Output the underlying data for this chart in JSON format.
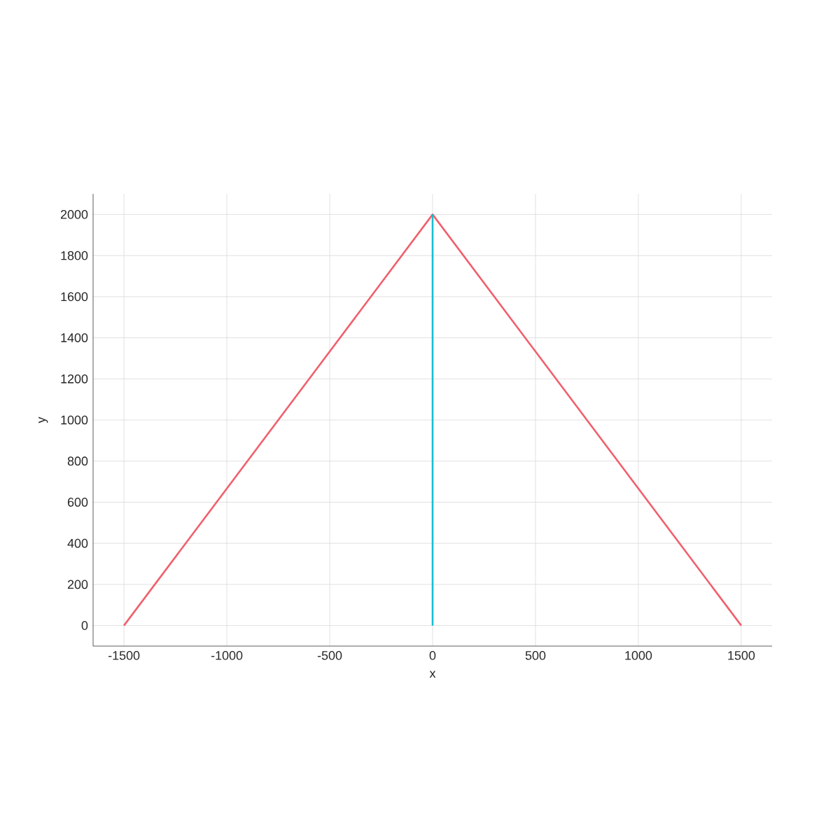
{
  "chart_data": {
    "type": "line",
    "xlabel": "x",
    "ylabel": "y",
    "series": [
      {
        "x": [
          -1500,
          0,
          1500
        ],
        "values": [
          0,
          2000,
          0
        ],
        "color": "#f0616d"
      },
      {
        "x": [
          0,
          0
        ],
        "values": [
          0,
          2000
        ],
        "color": "#17becf"
      }
    ],
    "xlim": [
      -1650,
      1650
    ],
    "ylim": [
      -100,
      2100
    ],
    "xticks": [
      -1500,
      -1000,
      -500,
      0,
      500,
      1000,
      1500
    ],
    "yticks": [
      0,
      200,
      400,
      600,
      800,
      1000,
      1200,
      1400,
      1600,
      1800,
      2000
    ],
    "grid": true,
    "marker": "none",
    "line_style": "solid"
  }
}
